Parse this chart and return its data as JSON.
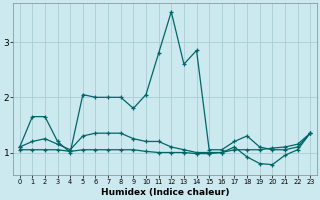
{
  "xlabel": "Humidex (Indice chaleur)",
  "ylabel": "",
  "background_color": "#cce9ef",
  "grid_color": "#aacdd5",
  "line_color": "#006666",
  "xlim": [
    -0.5,
    23.5
  ],
  "ylim": [
    0.6,
    3.7
  ],
  "yticks": [
    1,
    2,
    3
  ],
  "xticks": [
    0,
    1,
    2,
    3,
    4,
    5,
    6,
    7,
    8,
    9,
    10,
    11,
    12,
    13,
    14,
    15,
    16,
    17,
    18,
    19,
    20,
    21,
    22,
    23
  ],
  "series": [
    {
      "x": [
        0,
        1,
        2,
        3,
        4,
        5,
        6,
        7,
        8,
        9,
        10,
        11,
        12,
        13,
        14,
        15,
        16,
        17,
        18,
        19,
        20,
        21,
        22,
        23
      ],
      "y": [
        1.1,
        1.65,
        1.65,
        1.2,
        1.0,
        2.05,
        2.0,
        2.0,
        2.0,
        1.8,
        2.05,
        2.8,
        3.55,
        2.6,
        2.85,
        1.05,
        1.05,
        1.2,
        1.3,
        1.1,
        1.05,
        1.05,
        1.1,
        1.35
      ]
    },
    {
      "x": [
        0,
        1,
        2,
        3,
        4,
        5,
        6,
        7,
        8,
        9,
        10,
        11,
        12,
        13,
        14,
        15,
        16,
        17,
        18,
        19,
        20,
        21,
        22,
        23
      ],
      "y": [
        1.1,
        1.2,
        1.25,
        1.15,
        1.05,
        1.3,
        1.35,
        1.35,
        1.35,
        1.25,
        1.2,
        1.2,
        1.1,
        1.05,
        1.0,
        1.0,
        1.0,
        1.1,
        0.92,
        0.8,
        0.78,
        0.95,
        1.05,
        1.35
      ]
    },
    {
      "x": [
        0,
        1,
        2,
        3,
        4,
        5,
        6,
        7,
        8,
        9,
        10,
        11,
        12,
        13,
        14,
        15,
        16,
        17,
        18,
        19,
        20,
        21,
        22,
        23
      ],
      "y": [
        1.05,
        1.05,
        1.05,
        1.05,
        1.02,
        1.05,
        1.05,
        1.05,
        1.05,
        1.05,
        1.02,
        1.0,
        1.0,
        1.0,
        0.98,
        0.98,
        1.0,
        1.05,
        1.05,
        1.05,
        1.08,
        1.1,
        1.15,
        1.35
      ]
    }
  ]
}
